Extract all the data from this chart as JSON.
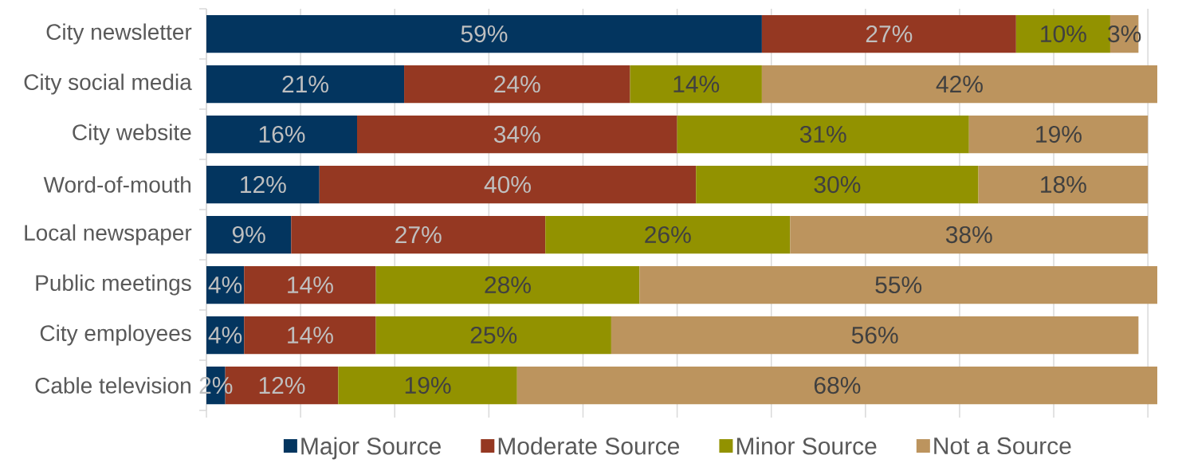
{
  "chart_data": {
    "type": "bar",
    "orientation": "horizontal",
    "stacked": true,
    "categories": [
      "City newsletter",
      "City social media",
      "City website",
      "Word-of-mouth",
      "Local newspaper",
      "Public meetings",
      "City employees",
      "Cable television"
    ],
    "series": [
      {
        "name": "Major Source",
        "color": "#03355f",
        "values": [
          59,
          21,
          16,
          12,
          9,
          4,
          4,
          2
        ],
        "value_labels": [
          "59%",
          "21%",
          "16%",
          "12%",
          "9%",
          "4%",
          "4%",
          "2%"
        ]
      },
      {
        "name": "Moderate Source",
        "color": "#953822",
        "values": [
          27,
          24,
          34,
          40,
          27,
          14,
          14,
          12
        ],
        "value_labels": [
          "27%",
          "24%",
          "34%",
          "40%",
          "27%",
          "14%",
          "14%",
          "12%"
        ]
      },
      {
        "name": "Minor Source",
        "color": "#929200",
        "values": [
          10,
          14,
          31,
          30,
          26,
          28,
          25,
          19
        ],
        "value_labels": [
          "10%",
          "14%",
          "31%",
          "30%",
          "26%",
          "28%",
          "25%",
          "19%"
        ]
      },
      {
        "name": "Not a Source",
        "color": "#bc945e",
        "values": [
          3,
          42,
          19,
          18,
          38,
          55,
          56,
          68
        ],
        "value_labels": [
          "3%",
          "42%",
          "19%",
          "18%",
          "38%",
          "55%",
          "56%",
          "68%"
        ]
      }
    ],
    "xlim": [
      0,
      101
    ],
    "xticks": [
      {
        "value": 0,
        "label": null
      },
      {
        "value": 10,
        "label": null
      },
      {
        "value": 20,
        "label": null
      },
      {
        "value": 30,
        "label": null
      },
      {
        "value": 40,
        "label": null
      },
      {
        "value": 50,
        "label": null
      },
      {
        "value": 60,
        "label": null
      },
      {
        "value": 70,
        "label": null
      },
      {
        "value": 80,
        "label": null
      },
      {
        "value": 90,
        "label": null
      },
      {
        "value": 100,
        "label": null
      }
    ],
    "grid": "x",
    "legend": "bottom",
    "tick_labels": "y"
  }
}
